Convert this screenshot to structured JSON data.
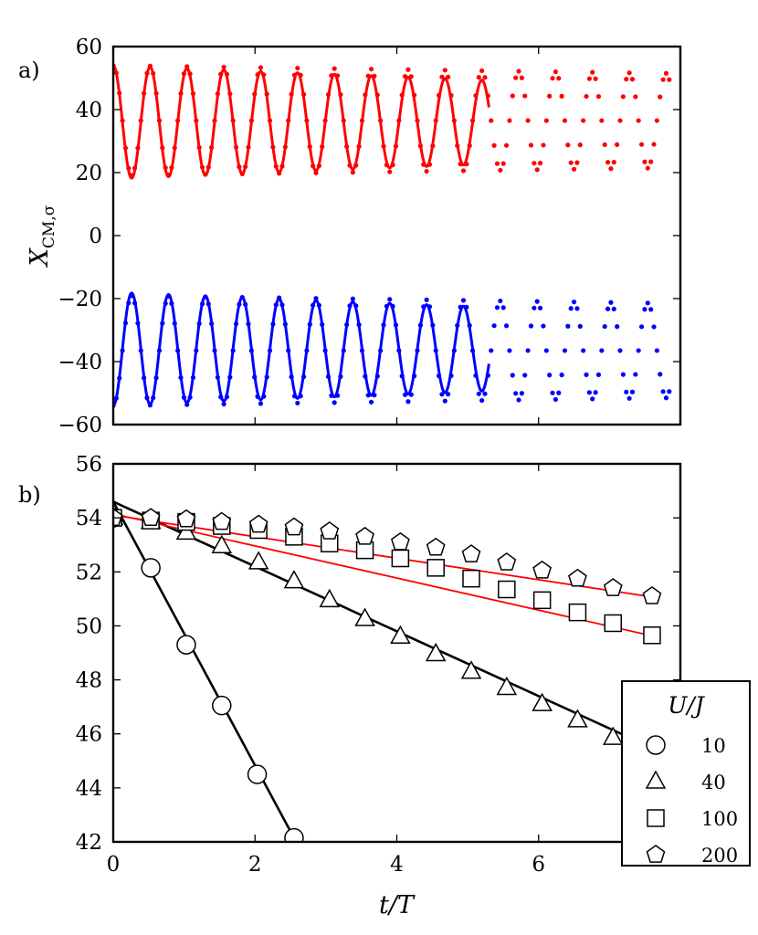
{
  "panel_a_label": "a)",
  "panel_b_label": "b)",
  "legend_title": "U/J",
  "chart_data": [
    {
      "panel": "a",
      "type": "line",
      "xlabel": "t/T",
      "ylabel": "X_CM,σ",
      "xlim": [
        0,
        8
      ],
      "ylim": [
        -60,
        60
      ],
      "yticks": [
        -60,
        -40,
        -20,
        0,
        20,
        40,
        60
      ],
      "yticklabels": [
        "−60",
        "−40",
        "−20",
        "0",
        "20",
        "40",
        "60"
      ],
      "xticks": [
        0,
        2,
        4,
        6
      ],
      "grid": false,
      "colors": {
        "up": "#ff0000",
        "down": "#0000ff"
      },
      "series": [
        {
          "name": "up solid",
          "style": "solid",
          "color": "#ff0000",
          "center": 36,
          "amp_start": 18,
          "amp_end": 11,
          "phase": 0,
          "period": 0.52,
          "t_start": 0,
          "t_end": 5.3
        },
        {
          "name": "up dotted",
          "style": "dotted",
          "color": "#ff0000",
          "center": 36.5,
          "amp_start": 17.5,
          "amp_end": 15,
          "phase": 0,
          "period": 0.52,
          "t_start": 0,
          "t_end": 7.85
        },
        {
          "name": "down solid",
          "style": "solid",
          "color": "#0000ff",
          "center": -36,
          "amp_start": 18,
          "amp_end": 11,
          "phase": 0.5,
          "period": 0.52,
          "t_start": 0,
          "t_end": 5.3
        },
        {
          "name": "down dotted",
          "style": "dotted",
          "color": "#0000ff",
          "center": -36.5,
          "amp_start": 17.5,
          "amp_end": 15,
          "phase": 0.5,
          "period": 0.52,
          "t_start": 0,
          "t_end": 7.85
        }
      ]
    },
    {
      "panel": "b",
      "type": "scatter",
      "xlabel": "t/T",
      "ylabel": "",
      "xlim": [
        0,
        8
      ],
      "ylim": [
        42,
        56
      ],
      "yticks": [
        42,
        44,
        46,
        48,
        50,
        52,
        54,
        56
      ],
      "yticklabels": [
        "42",
        "44",
        "46",
        "48",
        "50",
        "52",
        "54",
        "56"
      ],
      "xticks": [
        0,
        2,
        4,
        6
      ],
      "xticklabels": [
        "0",
        "2",
        "4",
        "6"
      ],
      "grid": false,
      "legend": {
        "title": "U/J",
        "placement": "bottom-right"
      },
      "series": [
        {
          "name": "10",
          "marker": "circle",
          "line_color": "#000000",
          "fit": {
            "x": [
              0,
              2.6
            ],
            "y": [
              54.6,
              41.9
            ]
          },
          "x": [
            0,
            0.53,
            1.03,
            1.53,
            2.03,
            2.55
          ],
          "y": [
            54.0,
            52.15,
            49.3,
            47.05,
            44.5,
            42.15
          ]
        },
        {
          "name": "40",
          "marker": "triangle",
          "line_color": "#000000",
          "fit": {
            "x": [
              0,
              8
            ],
            "y": [
              54.6,
              45.0
            ]
          },
          "x": [
            0,
            0.53,
            1.03,
            1.53,
            2.05,
            2.55,
            3.05,
            3.55,
            4.05,
            4.55,
            5.05,
            5.55,
            6.05,
            6.55,
            7.05
          ],
          "y": [
            54.0,
            53.85,
            53.45,
            52.95,
            52.35,
            51.65,
            50.95,
            50.25,
            49.6,
            48.95,
            48.3,
            47.7,
            47.1,
            46.5,
            45.85
          ]
        },
        {
          "name": "100",
          "marker": "square",
          "line_color": "#ff0000",
          "fit": {
            "x": [
              0,
              7.65
            ],
            "y": [
              54.15,
              49.6
            ]
          },
          "x": [
            0,
            0.53,
            1.03,
            1.53,
            2.05,
            2.55,
            3.05,
            3.55,
            4.05,
            4.55,
            5.05,
            5.55,
            6.05,
            6.55,
            7.05,
            7.6
          ],
          "y": [
            54.0,
            53.9,
            53.85,
            53.7,
            53.55,
            53.3,
            53.05,
            52.8,
            52.5,
            52.15,
            51.75,
            51.35,
            50.95,
            50.5,
            50.1,
            49.65
          ]
        },
        {
          "name": "200",
          "marker": "pentagon",
          "line_color": "#ff0000",
          "fit": {
            "x": [
              0,
              7.65
            ],
            "y": [
              54.1,
              51.05
            ]
          },
          "x": [
            0,
            0.53,
            1.03,
            1.53,
            2.05,
            2.55,
            3.05,
            3.55,
            4.05,
            4.55,
            5.05,
            5.55,
            6.05,
            6.55,
            7.05,
            7.6
          ],
          "y": [
            54.0,
            54.0,
            53.95,
            53.85,
            53.75,
            53.65,
            53.5,
            53.3,
            53.1,
            52.9,
            52.65,
            52.35,
            52.05,
            51.75,
            51.4,
            51.1
          ]
        }
      ]
    }
  ]
}
